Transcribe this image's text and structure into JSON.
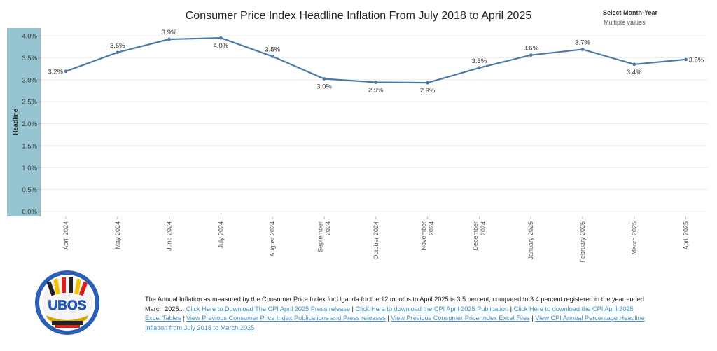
{
  "title": "Consumer Price Index Headline Inflation From July 2018 to April 2025",
  "filter": {
    "label": "Select Month-Year",
    "value": "Multiple values"
  },
  "chart_data": {
    "type": "line",
    "ylabel": "Headline",
    "ylim": [
      0,
      4.0
    ],
    "yticks": [
      "0.0%",
      "0.5%",
      "1.0%",
      "1.5%",
      "2.0%",
      "2.5%",
      "3.0%",
      "3.5%",
      "4.0%"
    ],
    "categories": [
      "April 2024",
      "May 2024",
      "June 2024",
      "July 2024",
      "August 2024",
      "September 2024",
      "October 2024",
      "November 2024",
      "December 2024",
      "January 2025",
      "February 2025",
      "March 2025",
      "April 2025"
    ],
    "category_lines": [
      [
        "April 2024"
      ],
      [
        "May 2024"
      ],
      [
        "June 2024"
      ],
      [
        "July 2024"
      ],
      [
        "August 2024"
      ],
      [
        "September",
        "2024"
      ],
      [
        "October 2024"
      ],
      [
        "November",
        "2024"
      ],
      [
        "December",
        "2024"
      ],
      [
        "January 2025"
      ],
      [
        "February 2025"
      ],
      [
        "March 2025"
      ],
      [
        "April 2025"
      ]
    ],
    "values": [
      3.19,
      3.62,
      3.92,
      3.95,
      3.53,
      3.02,
      2.94,
      2.93,
      3.27,
      3.56,
      3.69,
      3.35,
      3.46
    ],
    "labels": [
      "3.2%",
      "3.6%",
      "3.9%",
      "4.0%",
      "3.5%",
      "3.0%",
      "2.9%",
      "2.9%",
      "3.3%",
      "3.6%",
      "3.7%",
      "3.4%",
      "3.5%"
    ],
    "grid": true,
    "line_color": "#4e79a7"
  },
  "logo": {
    "text": "UBOS"
  },
  "description": {
    "text": "The Annual Inflation as measured by the Consumer Price Index for Uganda for the 12 months to April 2025 is 3.5 percent, compared to 3.4 percent registered in the year ended March 2025...",
    "links": [
      "Click Here to Download The CPI April 2025 Press release",
      "Click Here to download the CPI April 2025 Publication",
      "Click Here to download the CPI April 2025 Excel Tables",
      "View Previous Consumer Price Index Publications and Press releases",
      "View Previous Consumer Price Index Excel Files",
      "View CPI Annual Percentage Headline Inflation from July 2018 to March 2025"
    ],
    "separator": " | "
  }
}
